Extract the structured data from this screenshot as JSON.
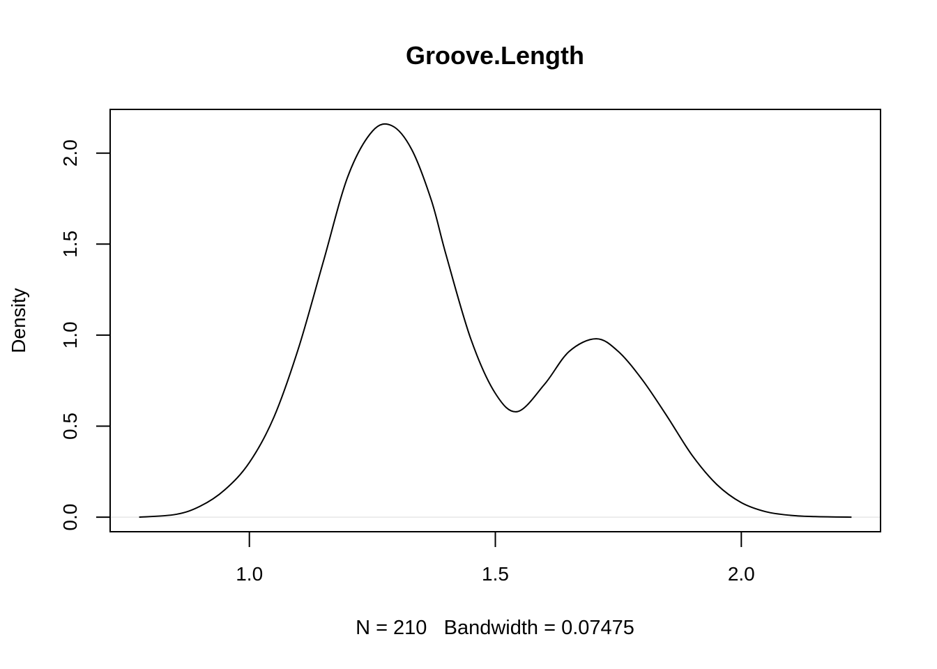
{
  "chart_data": {
    "type": "line",
    "title": "Groove.Length",
    "xlabel": "N = 210   Bandwidth = 0.07475",
    "ylabel": "Density",
    "xlim": [
      0.717,
      2.283
    ],
    "ylim": [
      -0.08,
      2.24
    ],
    "x_ticks": [
      1.0,
      1.5,
      2.0
    ],
    "x_tick_labels": [
      "1.0",
      "1.5",
      "2.0"
    ],
    "y_ticks": [
      0.0,
      0.5,
      1.0,
      1.5,
      2.0
    ],
    "y_tick_labels": [
      "0.0",
      "0.5",
      "1.0",
      "1.5",
      "2.0"
    ],
    "grid": false,
    "baseline": 0,
    "series": [
      {
        "color": "#000000",
        "x": [
          0.776,
          0.85,
          0.9,
          0.95,
          1.0,
          1.05,
          1.1,
          1.15,
          1.2,
          1.25,
          1.29,
          1.33,
          1.37,
          1.4,
          1.45,
          1.5,
          1.545,
          1.6,
          1.65,
          1.705,
          1.75,
          1.8,
          1.85,
          1.9,
          1.95,
          2.0,
          2.05,
          2.1,
          2.15,
          2.224
        ],
        "y": [
          0.0,
          0.015,
          0.06,
          0.15,
          0.3,
          0.55,
          0.93,
          1.4,
          1.87,
          2.12,
          2.15,
          2.02,
          1.74,
          1.44,
          0.98,
          0.68,
          0.58,
          0.73,
          0.91,
          0.98,
          0.91,
          0.75,
          0.55,
          0.34,
          0.18,
          0.08,
          0.03,
          0.01,
          0.003,
          0.0
        ]
      }
    ]
  }
}
